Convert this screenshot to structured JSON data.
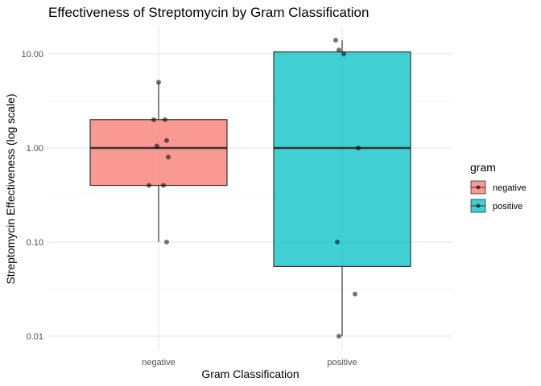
{
  "chart_data": {
    "type": "boxplot",
    "title": "Effectiveness of Streptomycin by Gram Classification",
    "xlabel": "Gram Classification",
    "ylabel": "Streptomycin Effectiveness (log scale)",
    "y_scale": "log10",
    "ylim": [
      0.008,
      16
    ],
    "y_ticks": [
      0.01,
      0.1,
      1,
      10
    ],
    "y_tick_labels": [
      "0.01",
      "0.10",
      "1.00",
      "10.00"
    ],
    "categories": [
      "negative",
      "positive"
    ],
    "grid": true,
    "legend": {
      "title": "gram",
      "position": "right",
      "entries": [
        {
          "label": "negative",
          "color": "#F8766D"
        },
        {
          "label": "positive",
          "color": "#00BFC4"
        }
      ]
    },
    "boxes": [
      {
        "category": "negative",
        "color": "#F8766D",
        "whisker_low": 0.1,
        "q1": 0.4,
        "median": 1.0,
        "q3": 2.0,
        "whisker_high": 5.0
      },
      {
        "category": "positive",
        "color": "#00BFC4",
        "whisker_low": 0.01,
        "q1": 0.055,
        "median": 1.0,
        "q3": 10.5,
        "whisker_high": 14.0
      }
    ],
    "points": [
      {
        "category": "negative",
        "y": 5.0
      },
      {
        "category": "negative",
        "y": 2.0
      },
      {
        "category": "negative",
        "y": 2.0
      },
      {
        "category": "negative",
        "y": 1.2
      },
      {
        "category": "negative",
        "y": 1.05
      },
      {
        "category": "negative",
        "y": 0.8
      },
      {
        "category": "negative",
        "y": 0.4
      },
      {
        "category": "negative",
        "y": 0.4
      },
      {
        "category": "negative",
        "y": 0.1
      },
      {
        "category": "positive",
        "y": 14.0
      },
      {
        "category": "positive",
        "y": 11.0
      },
      {
        "category": "positive",
        "y": 10.0
      },
      {
        "category": "positive",
        "y": 1.0
      },
      {
        "category": "positive",
        "y": 0.1
      },
      {
        "category": "positive",
        "y": 0.028
      },
      {
        "category": "positive",
        "y": 0.01
      }
    ]
  }
}
